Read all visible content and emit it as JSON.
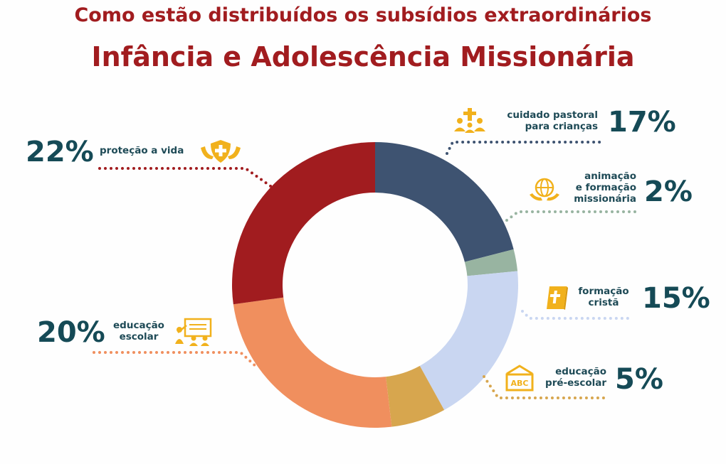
{
  "header": {
    "subtitle": "Como estão distribuídos os subsídios extraordinários",
    "title": "Infância e Adolescência Missionária"
  },
  "colors": {
    "title": "#a11c1f",
    "percent_text": "#154a56",
    "icon": "#f1b11c"
  },
  "chart_data": {
    "type": "pie",
    "subtype": "donut",
    "categories": [
      "cuidado pastoral para crianças",
      "animação e formação missionária",
      "formação cristã",
      "educação pré-escolar",
      "educação escolar",
      "proteção a vida"
    ],
    "values": [
      17,
      2,
      15,
      5,
      20,
      22
    ],
    "value_labels": [
      "17%",
      "2%",
      "15%",
      "5%",
      "20%",
      "22%"
    ],
    "colors": [
      "#3e5371",
      "#98b4a1",
      "#c9d6f1",
      "#d7a64e",
      "#f08f5e",
      "#a11c1f"
    ],
    "labels": [
      {
        "line1": "cuidado pastoral",
        "line2": "para crianças",
        "icon": "pastoral-cross-people-icon"
      },
      {
        "line1": "animação",
        "line2": "e formação",
        "line3": "missionária",
        "icon": "globe-hands-icon"
      },
      {
        "line1": "formação",
        "line2": "cristã",
        "icon": "bible-icon"
      },
      {
        "line1": "educação",
        "line2": "pré-escolar",
        "icon": "abc-board-icon"
      },
      {
        "line1": "educação",
        "line2": "escolar",
        "icon": "classroom-icon"
      },
      {
        "line1": "proteção a vida",
        "icon": "shield-cross-icon"
      }
    ]
  }
}
